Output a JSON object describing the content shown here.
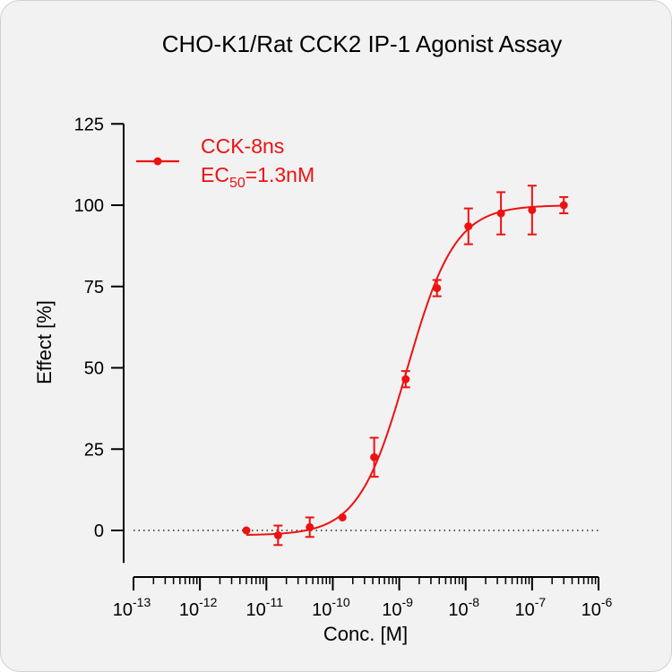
{
  "chart_data": {
    "type": "scatter",
    "title": "CHO-K1/Rat CCK2 IP-1 Agonist Assay",
    "xlabel": "Conc. [M]",
    "ylabel": "Effect  [%]",
    "x_scale": "log",
    "xlim": [
      1e-13,
      1e-06
    ],
    "ylim": [
      -10,
      125
    ],
    "x_ticks": [
      {
        "base": "10",
        "exp": "-13"
      },
      {
        "base": "10",
        "exp": "-12"
      },
      {
        "base": "10",
        "exp": "-11"
      },
      {
        "base": "10",
        "exp": "-10"
      },
      {
        "base": "10",
        "exp": "-9"
      },
      {
        "base": "10",
        "exp": "-8"
      },
      {
        "base": "10",
        "exp": "-7"
      },
      {
        "base": "10",
        "exp": "-6"
      }
    ],
    "y_ticks": [
      "0",
      "25",
      "50",
      "75",
      "100",
      "125"
    ],
    "reference_line": {
      "y": 0,
      "style": "dotted"
    },
    "legend": {
      "placement": "top-left",
      "series_label": "CCK-8ns",
      "ec50_main": "EC",
      "ec50_sub": "50",
      "ec50_rest": "=1.3nM"
    },
    "series": [
      {
        "name": "CCK-8ns",
        "color": "#ee1111",
        "points": [
          {
            "x": 5e-12,
            "y": 0,
            "err": 0
          },
          {
            "x": 1.5e-11,
            "y": -1.5,
            "err": 3
          },
          {
            "x": 4.5e-11,
            "y": 1,
            "err": 3
          },
          {
            "x": 1.4e-10,
            "y": 4,
            "err": 0
          },
          {
            "x": 4.2e-10,
            "y": 22.5,
            "err": 6
          },
          {
            "x": 1.25e-09,
            "y": 46.5,
            "err": 2.5
          },
          {
            "x": 3.7e-09,
            "y": 74.5,
            "err": 2.5
          },
          {
            "x": 1.1e-08,
            "y": 93.5,
            "err": 5.5
          },
          {
            "x": 3.4e-08,
            "y": 97.5,
            "err": 6.5
          },
          {
            "x": 1e-07,
            "y": 98.5,
            "err": 7.5
          },
          {
            "x": 3e-07,
            "y": 100,
            "err": 2.5
          }
        ],
        "fit": {
          "model": "4PL",
          "bottom": -1.5,
          "top": 100,
          "ec50": 1.3e-09,
          "hill": 1.2
        }
      }
    ]
  }
}
